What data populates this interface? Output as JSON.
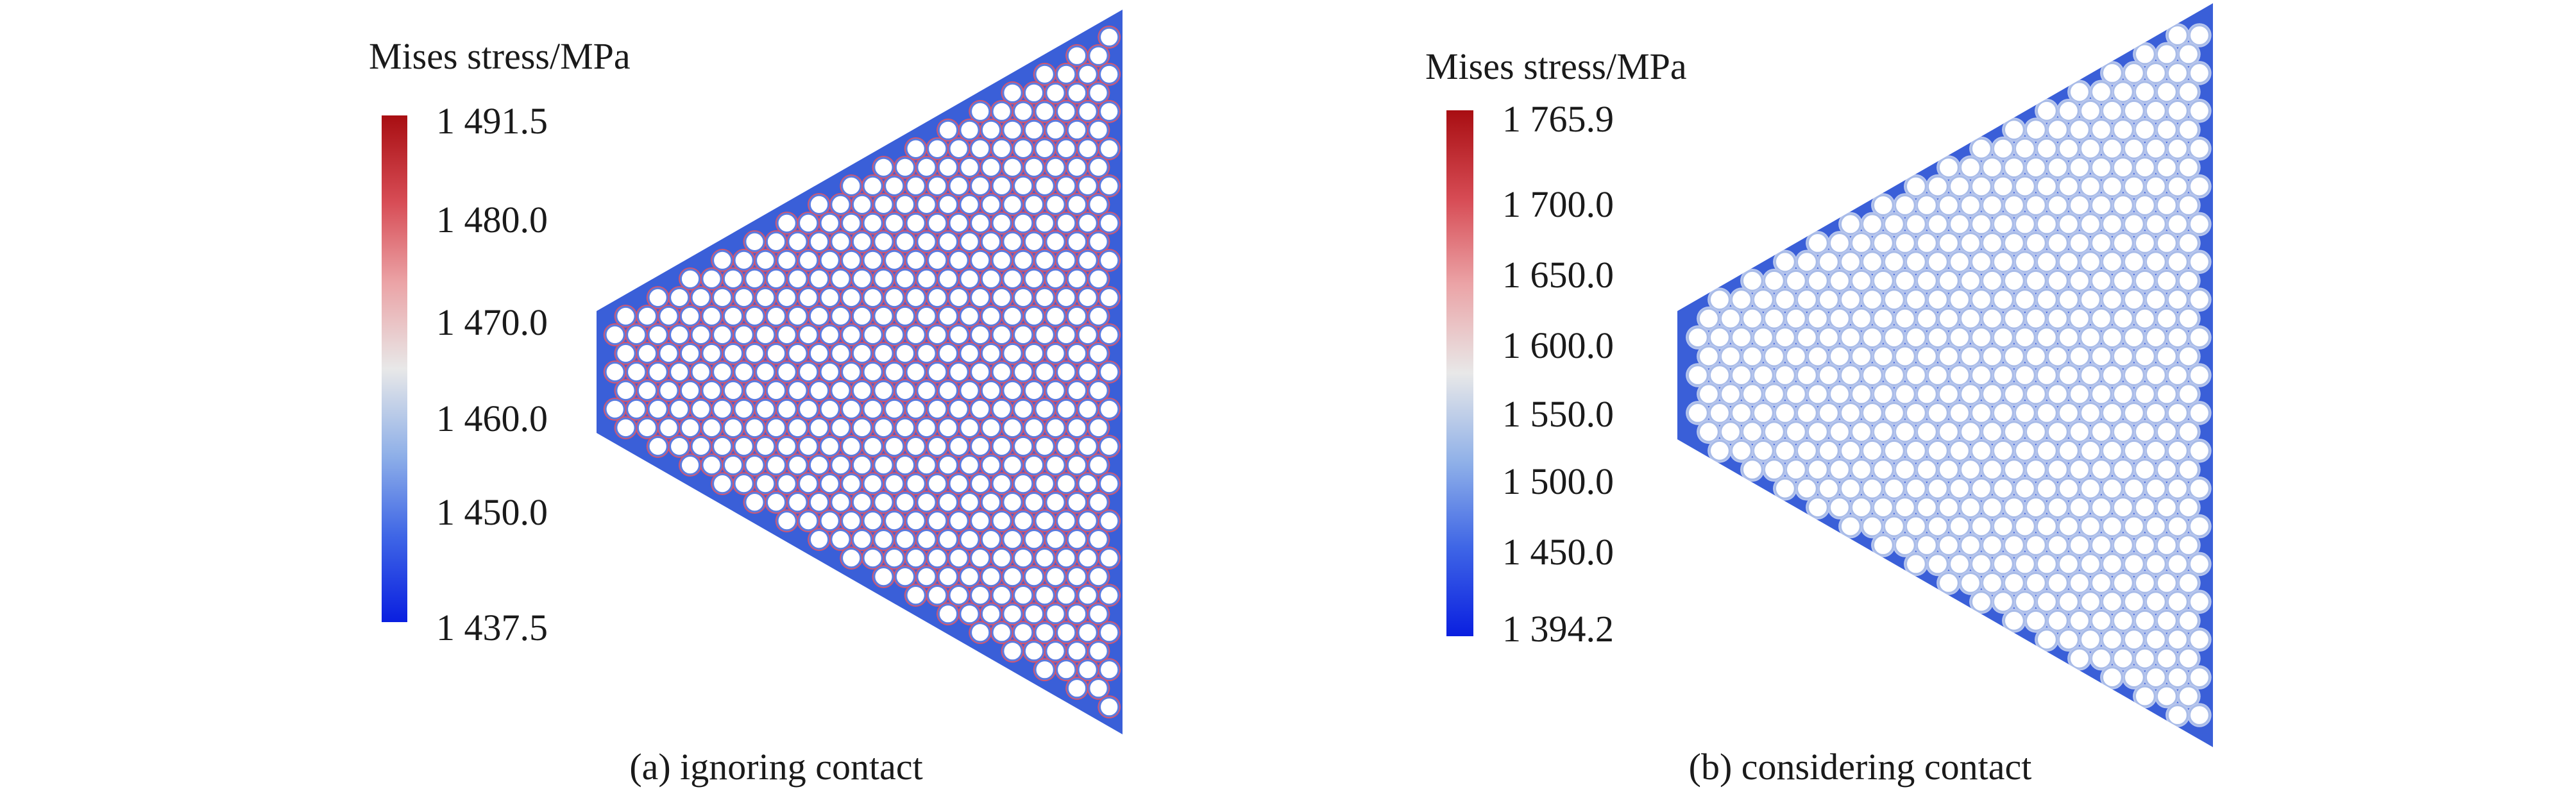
{
  "panels": [
    {
      "id": "a",
      "legend_title": "Mises stress/MPa",
      "tick_labels": [
        "1 491.5",
        "1 480.0",
        "1 470.0",
        "1 460.0",
        "1 450.0",
        "1 437.5"
      ],
      "caption": "(a) ignoring contact",
      "colormap": [
        "#0a1fe0",
        "#3f66e6",
        "#8fb0e8",
        "#e8e8e8",
        "#eba3a6",
        "#d74c55",
        "#a80e12"
      ],
      "body_color": "#3a5fd8",
      "web_color": "#d8556b",
      "hole_color": "#ffffff",
      "hole_edge_color": "#5a7be0"
    },
    {
      "id": "b",
      "legend_title": "Mises stress/MPa",
      "tick_labels": [
        "1 765.9",
        "1 700.0",
        "1 650.0",
        "1 600.0",
        "1 550.0",
        "1 500.0",
        "1 450.0",
        "1 394.2"
      ],
      "caption": "(b) considering contact",
      "colormap": [
        "#0a1fe0",
        "#3f66e6",
        "#8fb0e8",
        "#e8e8e8",
        "#eba3a6",
        "#d74c55",
        "#a80e12"
      ],
      "body_color": "#3a5fd8",
      "web_color": "#b9c7ee",
      "hole_color": "#ffffff",
      "hole_edge_color": "#a9bce8"
    }
  ]
}
